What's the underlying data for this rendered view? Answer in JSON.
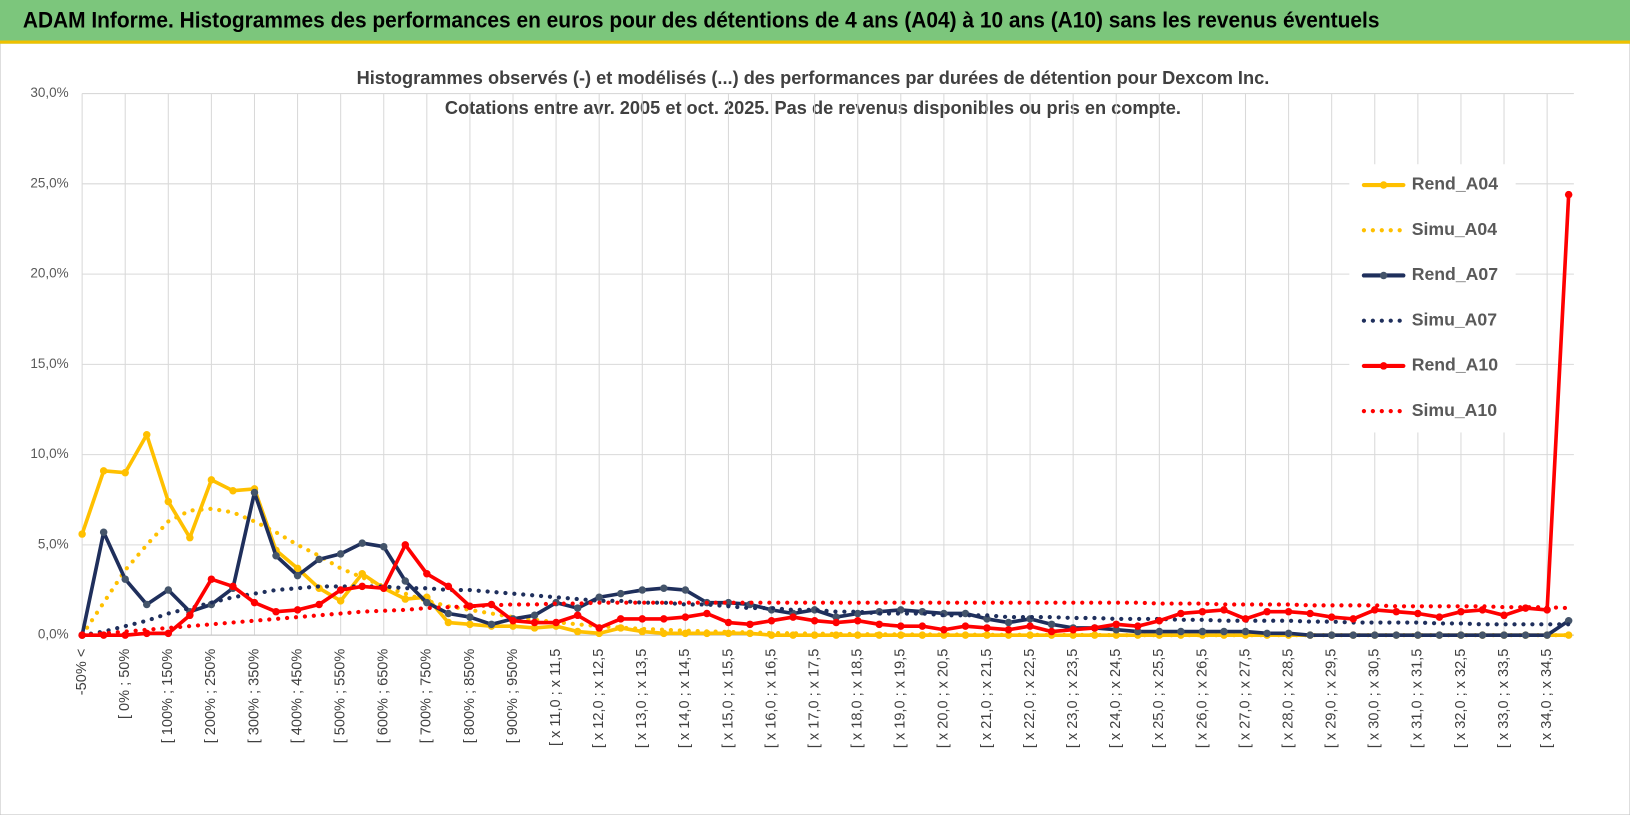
{
  "header": {
    "title": "ADAM Informe. Histogrammes des performances en euros pour des détentions de 4 ans (A04) à 10 ans (A10) sans les revenus éventuels"
  },
  "chart_data": {
    "type": "line",
    "title": "Histogrammes observés (-) et modélisés (...) des performances par durées de détention pour Dexcom Inc.",
    "subtitle": "Cotations entre avr. 2005 et oct. 2025.  Pas de revenus disponibles ou pris en compte.",
    "legend": "right",
    "grid": true,
    "ylim": [
      0,
      30
    ],
    "yticks": [
      {
        "value": 0,
        "label": "0,0%"
      },
      {
        "value": 5,
        "label": "5,0%"
      },
      {
        "value": 10,
        "label": "10,0%"
      },
      {
        "value": 15,
        "label": "15,0%"
      },
      {
        "value": 20,
        "label": "20,0%"
      },
      {
        "value": 25,
        "label": "25,0%"
      },
      {
        "value": 30,
        "label": "30,0%"
      }
    ],
    "categories": [
      "-50% <",
      null,
      "[ 0% ; 50%",
      null,
      "[ 100% ; 150%",
      null,
      "[ 200% ; 250%",
      null,
      "[ 300% ; 350%",
      null,
      "[ 400% ; 450%",
      null,
      "[ 500% ; 550%",
      null,
      "[ 600% ; 650%",
      null,
      "[ 700% ; 750%",
      null,
      "[ 800% ; 850%",
      null,
      "[ 900% ; 950%",
      null,
      "[ x 11,0 ; x 11,5",
      null,
      "[ x 12,0 ; x 12,5",
      null,
      "[ x 13,0 ; x 13,5",
      null,
      "[ x 14,0 ; x 14,5",
      null,
      "[ x 15,0 ; x 15,5",
      null,
      "[ x 16,0 ; x 16,5",
      null,
      "[ x 17,0 ; x 17,5",
      null,
      "[ x 18,0 ; x 18,5",
      null,
      "[ x 19,0 ; x 19,5",
      null,
      "[ x 20,0 ; x 20,5",
      null,
      "[ x 21,0 ; x 21,5",
      null,
      "[ x 22,0 ; x 22,5",
      null,
      "[ x 23,0 ; x 23,5",
      null,
      "[ x 24,0 ; x 24,5",
      null,
      "[ x 25,0 ; x 25,5",
      null,
      "[ x 26,0 ; x 26,5",
      null,
      "[ x 27,0 ; x 27,5",
      null,
      "[ x 28,0 ; x 28,5",
      null,
      "[ x 29,0 ; x 29,5",
      null,
      "[ x 30,0 ; x 30,5",
      null,
      "[ x 31,0 ; x 31,5",
      null,
      "[ x 32,0 ; x 32,5",
      null,
      "[ x 33,0 ; x 33,5",
      null,
      "[ x 34,0 ; x 34,5",
      null
    ],
    "series": [
      {
        "name": "Rend_A04",
        "color": "#ffc000",
        "style": "solid",
        "values": [
          5.6,
          9.1,
          9.0,
          11.1,
          7.4,
          5.4,
          8.6,
          8.0,
          8.1,
          4.7,
          3.7,
          2.6,
          1.9,
          3.4,
          2.6,
          2.0,
          2.1,
          0.7,
          0.6,
          0.5,
          0.5,
          0.4,
          0.5,
          0.2,
          0.1,
          0.4,
          0.2,
          0.1,
          0.1,
          0.1,
          0.1,
          0.1,
          0,
          0,
          0,
          0,
          0,
          0,
          0,
          0,
          0,
          0,
          0,
          0,
          0,
          0,
          0,
          0,
          0,
          0,
          0,
          0,
          0,
          0,
          0,
          0,
          0,
          0,
          0,
          0,
          0,
          0,
          0,
          0,
          0,
          0,
          0,
          0,
          0,
          0
        ]
      },
      {
        "name": "Simu_A04",
        "color": "#ffc000",
        "style": "dotted",
        "values": [
          0,
          1.8,
          3.6,
          5.0,
          6.3,
          6.9,
          7.0,
          6.8,
          6.3,
          5.7,
          5.0,
          4.4,
          3.7,
          3.2,
          2.7,
          2.3,
          1.9,
          1.6,
          1.4,
          1.2,
          1.0,
          0.85,
          0.72,
          0.6,
          0.5,
          0.42,
          0.35,
          0.3,
          0.25,
          0.21,
          0.18,
          0.15,
          0.12,
          0.1,
          0.09,
          0.07,
          0.06,
          0.05,
          0.04,
          0.04,
          0.03,
          0.03,
          0.02,
          0.02,
          0.02,
          0.01,
          0.01,
          0.01,
          0,
          0,
          0,
          0,
          0,
          0,
          0,
          0,
          0,
          0,
          0,
          0,
          0,
          0,
          0,
          0,
          0,
          0,
          0,
          0,
          0,
          0
        ]
      },
      {
        "name": "Rend_A07",
        "color": "#1f2f5c",
        "marker": "#44546a",
        "style": "solid",
        "values": [
          0,
          5.7,
          3.1,
          1.7,
          2.5,
          1.3,
          1.7,
          2.6,
          7.9,
          4.4,
          3.3,
          4.2,
          4.5,
          5.1,
          4.9,
          3.0,
          1.8,
          1.2,
          1.0,
          0.6,
          0.9,
          1.1,
          1.8,
          1.5,
          2.1,
          2.3,
          2.5,
          2.6,
          2.5,
          1.8,
          1.8,
          1.7,
          1.4,
          1.2,
          1.4,
          1.0,
          1.2,
          1.3,
          1.4,
          1.3,
          1.2,
          1.2,
          0.9,
          0.7,
          0.9,
          0.6,
          0.4,
          0.4,
          0.3,
          0.2,
          0.2,
          0.2,
          0.2,
          0.2,
          0.2,
          0.1,
          0.1,
          0,
          0,
          0,
          0,
          0,
          0,
          0,
          0,
          0,
          0,
          0,
          0,
          0.8
        ]
      },
      {
        "name": "Simu_A07",
        "color": "#1f2f5c",
        "style": "dotted",
        "values": [
          0,
          0.2,
          0.5,
          0.8,
          1.2,
          1.5,
          1.8,
          2.1,
          2.3,
          2.5,
          2.6,
          2.7,
          2.7,
          2.7,
          2.7,
          2.6,
          2.6,
          2.5,
          2.5,
          2.4,
          2.3,
          2.2,
          2.1,
          2.0,
          1.9,
          1.9,
          1.8,
          1.8,
          1.7,
          1.7,
          1.6,
          1.5,
          1.5,
          1.4,
          1.4,
          1.3,
          1.3,
          1.2,
          1.2,
          1.2,
          1.1,
          1.1,
          1.1,
          1.0,
          1.0,
          1.0,
          0.95,
          0.95,
          0.9,
          0.9,
          0.9,
          0.85,
          0.85,
          0.8,
          0.8,
          0.8,
          0.8,
          0.75,
          0.75,
          0.7,
          0.7,
          0.7,
          0.7,
          0.65,
          0.65,
          0.6,
          0.6,
          0.6,
          0.6,
          0.6
        ]
      },
      {
        "name": "Rend_A10",
        "color": "#ff0000",
        "style": "solid",
        "values": [
          0,
          0,
          0,
          0.1,
          0.1,
          1.1,
          3.1,
          2.7,
          1.8,
          1.3,
          1.4,
          1.7,
          2.5,
          2.7,
          2.6,
          5.0,
          3.4,
          2.7,
          1.6,
          1.7,
          0.8,
          0.7,
          0.7,
          1.1,
          0.4,
          0.9,
          0.9,
          0.9,
          1.0,
          1.2,
          0.7,
          0.6,
          0.8,
          1.0,
          0.8,
          0.7,
          0.8,
          0.6,
          0.5,
          0.5,
          0.3,
          0.5,
          0.4,
          0.3,
          0.5,
          0.2,
          0.3,
          0.4,
          0.6,
          0.5,
          0.8,
          1.2,
          1.3,
          1.4,
          0.9,
          1.3,
          1.3,
          1.2,
          1.0,
          0.9,
          1.4,
          1.3,
          1.2,
          1.0,
          1.3,
          1.4,
          1.1,
          1.5,
          1.4,
          24.4
        ]
      },
      {
        "name": "Simu_A10",
        "color": "#ff0000",
        "style": "dotted",
        "values": [
          0,
          0.1,
          0.2,
          0.3,
          0.4,
          0.5,
          0.6,
          0.7,
          0.8,
          0.9,
          1.0,
          1.1,
          1.2,
          1.3,
          1.35,
          1.4,
          1.5,
          1.55,
          1.6,
          1.65,
          1.7,
          1.7,
          1.75,
          1.75,
          1.8,
          1.8,
          1.8,
          1.8,
          1.8,
          1.8,
          1.8,
          1.8,
          1.8,
          1.8,
          1.8,
          1.8,
          1.8,
          1.8,
          1.8,
          1.8,
          1.8,
          1.8,
          1.8,
          1.8,
          1.8,
          1.8,
          1.8,
          1.8,
          1.8,
          1.8,
          1.75,
          1.75,
          1.75,
          1.7,
          1.7,
          1.7,
          1.7,
          1.65,
          1.65,
          1.65,
          1.65,
          1.6,
          1.6,
          1.6,
          1.6,
          1.6,
          1.55,
          1.55,
          1.55,
          1.5
        ]
      }
    ]
  }
}
